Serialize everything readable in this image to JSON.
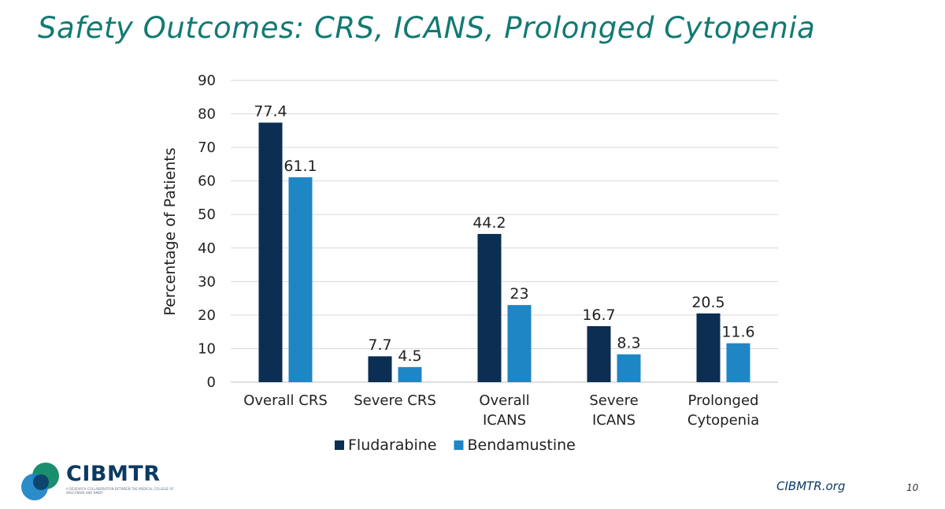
{
  "slide": {
    "title": "Safety Outcomes: CRS, ICANS, Prolonged Cytopenia",
    "footer_url": "CIBMTR.org",
    "page_number": "10",
    "logo_text": "CIBMTR",
    "logo_subtext": "A RESEARCH COLLABORATION BETWEEN THE MEDICAL COLLEGE OF WISCONSIN AND NMDP"
  },
  "colors": {
    "title": "#127a72",
    "fludarabine": "#0b2e52",
    "bendamustine": "#1f86c6",
    "gridline": "#d9d9d9"
  },
  "chart_data": {
    "type": "bar",
    "title": "",
    "xlabel": "",
    "ylabel": "Percentage of Patients",
    "ylim": [
      0,
      90
    ],
    "yticks": [
      0,
      10,
      20,
      30,
      40,
      50,
      60,
      70,
      80,
      90
    ],
    "grid": true,
    "legend_position": "bottom",
    "categories": [
      [
        "Overall CRS"
      ],
      [
        "Severe CRS"
      ],
      [
        "Overall",
        "ICANS"
      ],
      [
        "Severe",
        "ICANS"
      ],
      [
        "Prolonged",
        "Cytopenia"
      ]
    ],
    "series": [
      {
        "name": "Fludarabine",
        "values": [
          77.4,
          7.7,
          44.2,
          16.7,
          20.5
        ],
        "labels": [
          "77.4",
          "7.7",
          "44.2",
          "16.7",
          "20.5"
        ]
      },
      {
        "name": "Bendamustine",
        "values": [
          61.1,
          4.5,
          23,
          8.3,
          11.6
        ],
        "labels": [
          "61.1",
          "4.5",
          "23",
          "8.3",
          "11.6"
        ]
      }
    ]
  }
}
